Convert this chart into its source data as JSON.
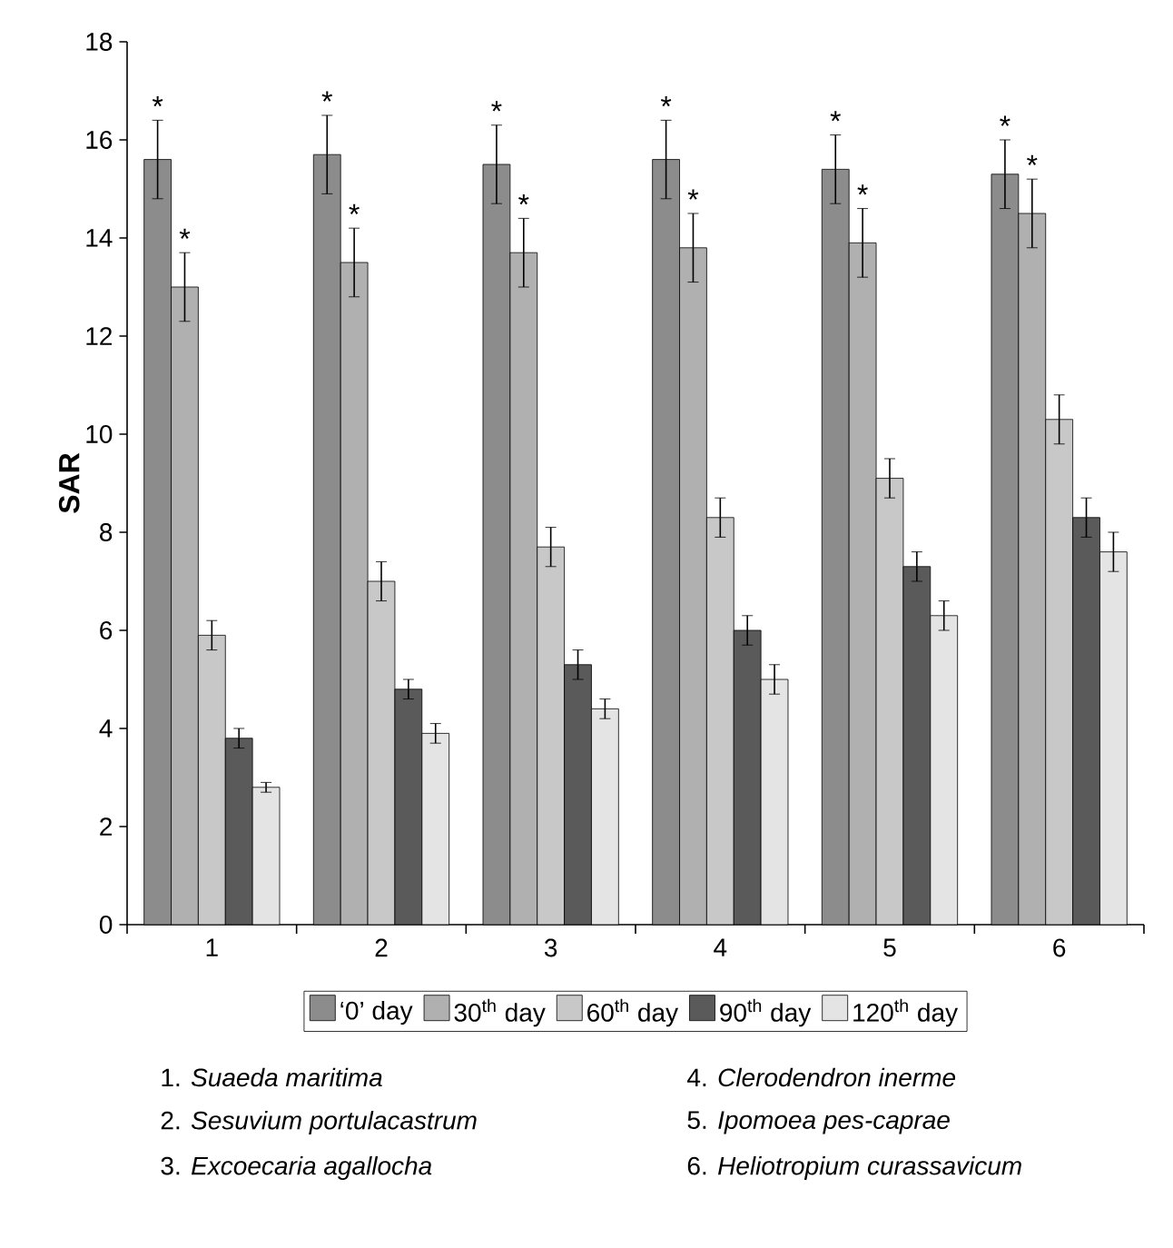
{
  "chart_data": {
    "type": "bar",
    "ylabel": "SAR",
    "categories": [
      "1",
      "2",
      "3",
      "4",
      "5",
      "6"
    ],
    "series": [
      {
        "name": "‘0’ day",
        "color": "#8c8c8c",
        "values": [
          15.6,
          15.7,
          15.5,
          15.6,
          15.4,
          15.3
        ],
        "errors": [
          0.8,
          0.8,
          0.8,
          0.8,
          0.7,
          0.7
        ]
      },
      {
        "name": "30$^{th}$ day",
        "color": "#b0b0b0",
        "values": [
          13.0,
          13.5,
          13.7,
          13.8,
          13.9,
          14.5
        ],
        "errors": [
          0.7,
          0.7,
          0.7,
          0.7,
          0.7,
          0.7
        ]
      },
      {
        "name": "60$^{th}$ day",
        "color": "#c8c8c8",
        "values": [
          5.9,
          7.0,
          7.7,
          8.3,
          9.1,
          10.3
        ],
        "errors": [
          0.3,
          0.4,
          0.4,
          0.4,
          0.4,
          0.5
        ]
      },
      {
        "name": "90$^{th}$ day",
        "color": "#5a5a5a",
        "values": [
          3.8,
          4.8,
          5.3,
          6.0,
          7.3,
          8.3
        ],
        "errors": [
          0.2,
          0.2,
          0.3,
          0.3,
          0.3,
          0.4
        ]
      },
      {
        "name": "120$^{th}$ day",
        "color": "#e4e4e4",
        "values": [
          2.8,
          3.9,
          4.4,
          5.0,
          6.3,
          7.6
        ],
        "errors": [
          0.1,
          0.2,
          0.2,
          0.3,
          0.3,
          0.4
        ]
      }
    ],
    "ylim": [
      0,
      18
    ],
    "yticks": [
      0,
      2,
      4,
      6,
      8,
      10,
      12,
      14,
      16,
      18
    ],
    "legend": "bottom",
    "grid": false,
    "annotations": [
      "*",
      "*",
      "*",
      "*",
      "*",
      "*",
      "*",
      "*",
      "*",
      "*",
      "*",
      "*",
      "1. *Suaeda maritima*",
      "2. *Sesuvium portulacastrum*",
      "3. *Excoecaria agallocha*",
      "4. *Clerodendron inerme*",
      "5. *Ipomoea pes-caprae*",
      "6. *Heliotropium curassavicum*"
    ]
  }
}
